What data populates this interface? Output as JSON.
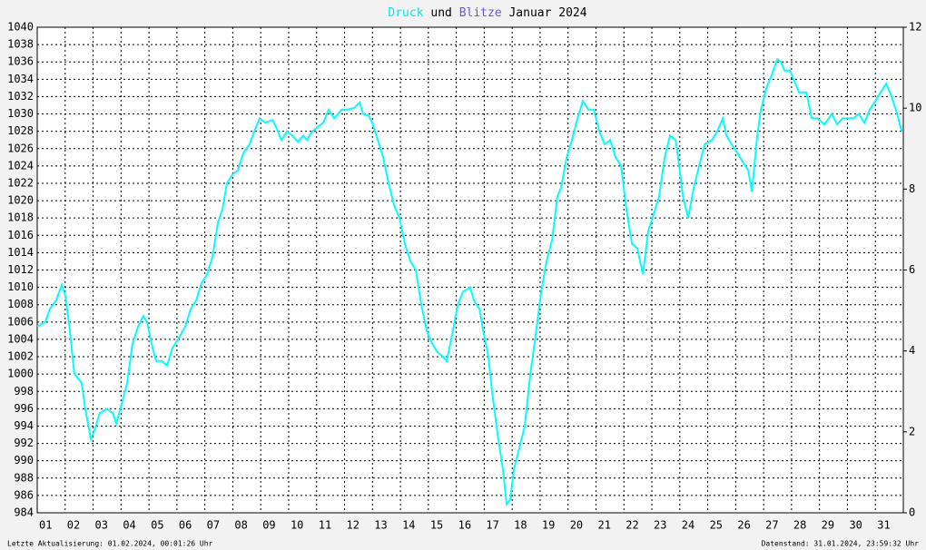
{
  "chart_data": {
    "type": "line",
    "title_parts": [
      {
        "text": "Druck",
        "color": "#00e8e8"
      },
      {
        "text": "und"
      },
      {
        "text": "Blitze",
        "color": "#6a5acd"
      },
      {
        "text": "Januar 2024"
      }
    ],
    "footer_left": "Letzte Aktualisierung: 01.02.2024, 00:01:26 Uhr",
    "footer_right": "Datenstand: 31.01.2024, 23:59:32 Uhr",
    "xlim": [
      1,
      32
    ],
    "xticks": [
      {
        "value": 1,
        "label": "01"
      },
      {
        "value": 2,
        "label": "02"
      },
      {
        "value": 3,
        "label": "03"
      },
      {
        "value": 4,
        "label": "04"
      },
      {
        "value": 5,
        "label": "05"
      },
      {
        "value": 6,
        "label": "06"
      },
      {
        "value": 7,
        "label": "07"
      },
      {
        "value": 8,
        "label": "08"
      },
      {
        "value": 9,
        "label": "09"
      },
      {
        "value": 10,
        "label": "10"
      },
      {
        "value": 11,
        "label": "11"
      },
      {
        "value": 12,
        "label": "12"
      },
      {
        "value": 13,
        "label": "13"
      },
      {
        "value": 14,
        "label": "14"
      },
      {
        "value": 15,
        "label": "15"
      },
      {
        "value": 16,
        "label": "16"
      },
      {
        "value": 17,
        "label": "17"
      },
      {
        "value": 18,
        "label": "18"
      },
      {
        "value": 19,
        "label": "19"
      },
      {
        "value": 20,
        "label": "20"
      },
      {
        "value": 21,
        "label": "21"
      },
      {
        "value": 22,
        "label": "22"
      },
      {
        "value": 23,
        "label": "23"
      },
      {
        "value": 24,
        "label": "24"
      },
      {
        "value": 25,
        "label": "25"
      },
      {
        "value": 26,
        "label": "26"
      },
      {
        "value": 27,
        "label": "27"
      },
      {
        "value": 28,
        "label": "28"
      },
      {
        "value": 29,
        "label": "29"
      },
      {
        "value": 30,
        "label": "30"
      },
      {
        "value": 31,
        "label": "31"
      }
    ],
    "ylim": [
      984,
      1040
    ],
    "yticks": [
      984,
      986,
      988,
      990,
      992,
      994,
      996,
      998,
      1000,
      1002,
      1004,
      1006,
      1008,
      1010,
      1012,
      1014,
      1016,
      1018,
      1020,
      1022,
      1024,
      1026,
      1028,
      1030,
      1032,
      1034,
      1036,
      1038,
      1040
    ],
    "y2lim": [
      0,
      12
    ],
    "y2ticks": [
      0,
      2,
      4,
      6,
      8,
      10,
      12
    ],
    "grid": true,
    "x": [
      1.0,
      1.29,
      1.45,
      1.68,
      1.88,
      2.01,
      2.17,
      2.33,
      2.46,
      2.59,
      2.72,
      2.92,
      3.05,
      3.24,
      3.5,
      3.7,
      3.83,
      4.02,
      4.22,
      4.41,
      4.61,
      4.8,
      4.93,
      5.13,
      5.26,
      5.45,
      5.65,
      5.84,
      6.04,
      6.3,
      6.49,
      6.69,
      6.88,
      7.08,
      7.27,
      7.47,
      7.63,
      7.79,
      7.99,
      8.18,
      8.38,
      8.6,
      8.77,
      8.96,
      9.16,
      9.42,
      9.55,
      9.74,
      9.94,
      10.13,
      10.33,
      10.52,
      10.65,
      10.85,
      11.04,
      11.24,
      11.43,
      11.63,
      11.89,
      12.08,
      12.34,
      12.54,
      12.67,
      12.86,
      12.99,
      13.19,
      13.38,
      13.58,
      13.77,
      13.97,
      14.16,
      14.36,
      14.55,
      14.75,
      14.94,
      15.14,
      15.33,
      15.53,
      15.66,
      15.85,
      16.05,
      16.24,
      16.5,
      16.63,
      16.83,
      16.96,
      17.15,
      17.28,
      17.48,
      17.67,
      17.8,
      17.93,
      18.06,
      18.26,
      18.45,
      18.65,
      18.84,
      19.04,
      19.23,
      19.43,
      19.62,
      19.75,
      19.95,
      20.14,
      20.34,
      20.53,
      20.73,
      20.92,
      21.12,
      21.31,
      21.51,
      21.7,
      21.9,
      22.09,
      22.29,
      22.48,
      22.68,
      22.87,
      23.07,
      23.26,
      23.46,
      23.65,
      23.85,
      23.98,
      24.11,
      24.3,
      24.5,
      24.69,
      24.89,
      25.15,
      25.34,
      25.54,
      25.67,
      25.86,
      26.06,
      26.25,
      26.45,
      26.58,
      26.77,
      26.9,
      27.1,
      27.29,
      27.49,
      27.62,
      27.75,
      27.94,
      28.14,
      28.27,
      28.53,
      28.72,
      28.92,
      29.18,
      29.44,
      29.63,
      29.83,
      30.02,
      30.22,
      30.41,
      30.61,
      30.8,
      31.0,
      31.19,
      31.39,
      31.58,
      31.78,
      31.94
    ],
    "series": [
      {
        "name": "Druck",
        "color": "#00ffff",
        "values": [
          1005.5,
          1006,
          1007.5,
          1008.5,
          1010.3,
          1009,
          1005,
          1000,
          999.5,
          999,
          996,
          992.5,
          993.5,
          995.5,
          996,
          995.5,
          994.3,
          996.5,
          999,
          1003.5,
          1005.5,
          1006.7,
          1006,
          1003,
          1001.5,
          1001.5,
          1001,
          1003,
          1004,
          1005.5,
          1007.5,
          1008.5,
          1010.5,
          1011.5,
          1013.5,
          1017.5,
          1019,
          1022,
          1023,
          1023.5,
          1025.5,
          1026.5,
          1028,
          1029.5,
          1029,
          1029.3,
          1028.5,
          1027,
          1028,
          1027.5,
          1026.8,
          1027.5,
          1027,
          1028,
          1028.5,
          1029,
          1030.5,
          1029.5,
          1030.5,
          1030.5,
          1030.7,
          1031.3,
          1030,
          1029.8,
          1029,
          1027,
          1025,
          1022,
          1019.5,
          1018,
          1015,
          1013,
          1012,
          1008,
          1005,
          1003.5,
          1002.5,
          1002,
          1001.5,
          1004.5,
          1008,
          1009.5,
          1010,
          1008.5,
          1007.5,
          1005,
          1002,
          998,
          993,
          989,
          985,
          985.5,
          989,
          991.5,
          994,
          1000,
          1004.5,
          1009.5,
          1013,
          1015.5,
          1020.5,
          1021.5,
          1025,
          1027,
          1029.5,
          1031.5,
          1030.5,
          1030.5,
          1028,
          1026.5,
          1027,
          1025,
          1024,
          1019,
          1015,
          1014.5,
          1011.5,
          1016.5,
          1018.5,
          1020.5,
          1025,
          1027.5,
          1027,
          1024,
          1020.5,
          1018,
          1021.5,
          1024,
          1026.5,
          1027,
          1028,
          1029.5,
          1027.5,
          1026.5,
          1025.5,
          1024.5,
          1023.5,
          1021,
          1027.5,
          1030.5,
          1033,
          1034.5,
          1036.3,
          1036,
          1035,
          1035,
          1033.5,
          1032.5,
          1032.5,
          1029.5,
          1029.5,
          1028.8,
          1030,
          1028.8,
          1029.5,
          1029.5,
          1029.5,
          1030,
          1029,
          1030.5,
          1031.5,
          1032.5,
          1033.5,
          1032,
          1030,
          1028
        ]
      }
    ]
  }
}
